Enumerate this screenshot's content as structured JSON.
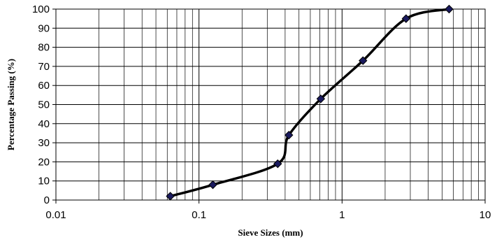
{
  "chart_data": {
    "type": "line",
    "x_scale": "log",
    "xlim": [
      0.01,
      10
    ],
    "ylim": [
      0,
      100
    ],
    "xlabel": "Sieve Sizes (mm)",
    "ylabel": "Percentage Passing (%)",
    "x_tick_labels": [
      "0.01",
      "0.1",
      "1",
      "10"
    ],
    "y_tick_labels": [
      "0",
      "10",
      "20",
      "30",
      "40",
      "50",
      "60",
      "70",
      "80",
      "90",
      "100"
    ],
    "grid": true,
    "legend": "none",
    "series": [
      {
        "marker": "diamond",
        "color": "#000000",
        "marker_color": "#1a1a5e",
        "points": [
          {
            "x": 0.063,
            "y": 2
          },
          {
            "x": 0.125,
            "y": 8
          },
          {
            "x": 0.355,
            "y": 19
          },
          {
            "x": 0.425,
            "y": 34
          },
          {
            "x": 0.71,
            "y": 53
          },
          {
            "x": 1.4,
            "y": 73
          },
          {
            "x": 2.8,
            "y": 95
          },
          {
            "x": 5.6,
            "y": 100
          }
        ]
      }
    ]
  }
}
